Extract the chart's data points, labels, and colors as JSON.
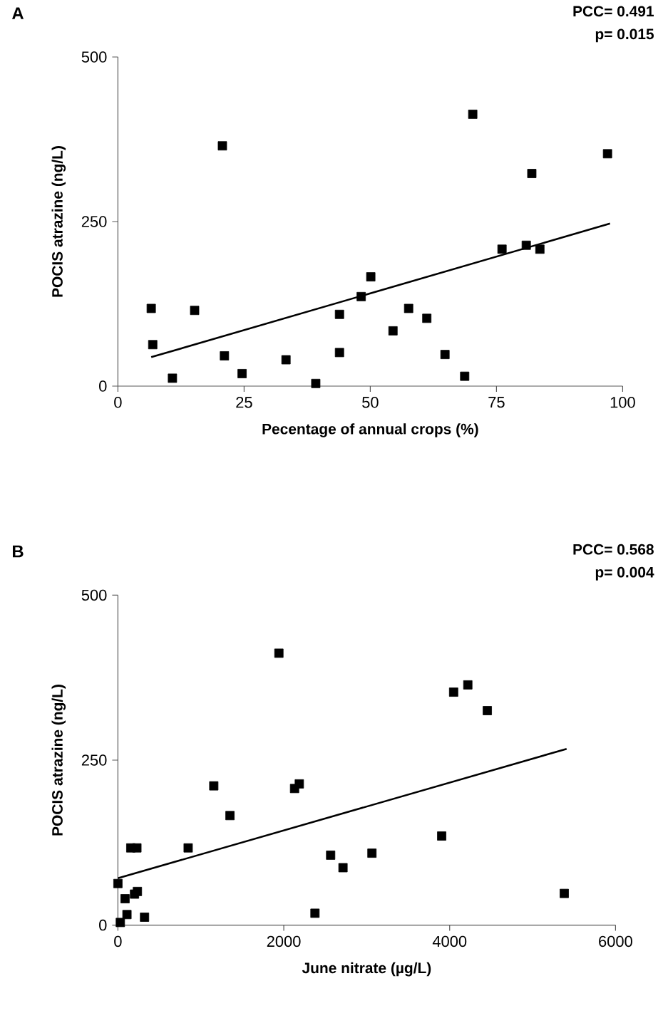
{
  "chart_data": [
    {
      "type": "scatter",
      "xlabel": "Pecentage of annual crops (%)",
      "ylabel": "POCIS atrazine (ng/L)",
      "annotations": [
        "A",
        "PCC= 0.491",
        "p= 0.015"
      ],
      "xlim": [
        0,
        100
      ],
      "ylim": [
        0,
        500
      ],
      "xticks": [
        0,
        25,
        50,
        75,
        100
      ],
      "yticks": [
        0,
        250,
        500
      ],
      "grid": false,
      "series": [
        {
          "marker": "square",
          "color": "#000000",
          "x": [
            6.6,
            6.9,
            10.8,
            15.2,
            20.7,
            21.1,
            24.6,
            33.3,
            39.2,
            43.9,
            43.9,
            48.2,
            50.1,
            54.5,
            57.6,
            61.2,
            64.8,
            68.7,
            70.3,
            76.1,
            80.9,
            82.0,
            83.6,
            97.0
          ],
          "values": [
            118,
            63,
            12,
            115,
            365,
            46,
            19,
            40,
            4,
            109,
            51,
            136,
            166,
            84,
            118,
            103,
            48,
            15,
            413,
            208,
            214,
            323,
            208,
            353
          ]
        },
        {
          "type": "line",
          "marker": "none",
          "color": "#000000",
          "x": [
            6.6,
            97.5
          ],
          "values": [
            44,
            247
          ]
        }
      ]
    },
    {
      "type": "scatter",
      "xlabel": "June nitrate (µg/L)",
      "ylabel": "POCIS atrazine (ng/L)",
      "annotations": [
        "B",
        "PCC= 0.568",
        "p= 0.004"
      ],
      "xlim": [
        0,
        6000
      ],
      "ylim": [
        0,
        500
      ],
      "xticks": [
        0,
        2000,
        4000,
        6000
      ],
      "yticks": [
        0,
        250,
        500
      ],
      "grid": false,
      "series": [
        {
          "marker": "square",
          "color": "#000000",
          "x": [
            0,
            29,
            86,
            109,
            155,
            229,
            200,
            235,
            321,
            847,
            1156,
            1351,
            1941,
            2130,
            2187,
            2376,
            2565,
            2714,
            3063,
            3904,
            4048,
            4219,
            4454,
            5382
          ],
          "values": [
            63,
            4,
            40,
            16,
            117,
            117,
            47,
            51,
            12,
            117,
            211,
            166,
            412,
            207,
            214,
            18,
            106,
            87,
            109,
            135,
            353,
            364,
            325,
            48
          ]
        },
        {
          "type": "line",
          "marker": "none",
          "color": "#000000",
          "x": [
            0,
            5410
          ],
          "values": [
            71,
            267
          ]
        }
      ]
    }
  ]
}
